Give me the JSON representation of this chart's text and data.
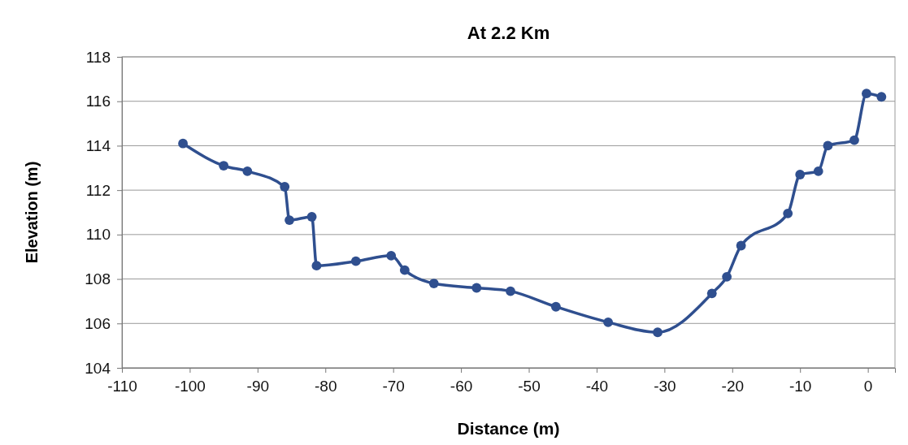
{
  "chart_data": {
    "type": "line",
    "title": "At 2.2 Km",
    "xlabel": "Distance (m)",
    "ylabel": "Elevation (m)",
    "x": [
      -101,
      -95,
      -91.5,
      -86,
      -85.3,
      -82,
      -81.3,
      -75.5,
      -70.3,
      -68.3,
      -64,
      -57.7,
      -52.7,
      -46,
      -38.3,
      -31,
      -23,
      -20.8,
      -18.7,
      -11.8,
      -10,
      -7.3,
      -5.9,
      -2,
      -0.2,
      2
    ],
    "series": [
      {
        "color": "#2f4f8f",
        "values": [
          114.1,
          113.1,
          112.85,
          112.15,
          110.65,
          110.8,
          108.6,
          108.8,
          109.05,
          108.4,
          107.8,
          107.6,
          107.45,
          106.75,
          106.05,
          105.6,
          107.35,
          108.1,
          109.5,
          110.95,
          112.7,
          112.85,
          114,
          114.25,
          116.35,
          116.2
        ]
      }
    ],
    "xlim": [
      -110,
      4
    ],
    "xticks": [
      -110,
      -100,
      -90,
      -80,
      -70,
      -60,
      -50,
      -40,
      -30,
      -20,
      -10,
      0
    ],
    "ylim": [
      104,
      118
    ],
    "yticks": [
      104,
      106,
      108,
      110,
      112,
      114,
      116,
      118
    ],
    "grid": "y",
    "marker": "circle",
    "line_style": "solid",
    "legend": false
  }
}
